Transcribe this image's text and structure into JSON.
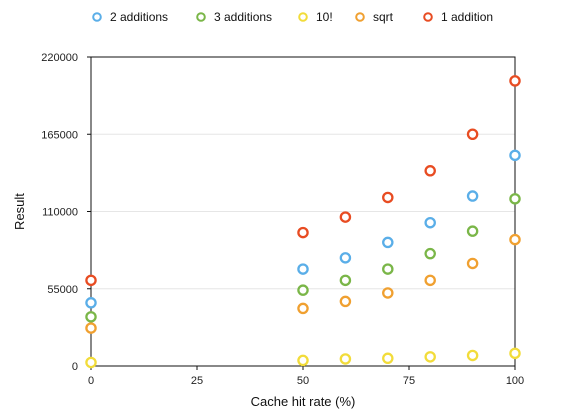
{
  "chart_data": {
    "type": "scatter",
    "title": "",
    "xlabel": "Cache hit rate (%)",
    "ylabel": "Result",
    "xlim": [
      0,
      100
    ],
    "ylim": [
      0,
      220000
    ],
    "x_ticks": [
      "0",
      "25",
      "50",
      "75",
      "100"
    ],
    "y_ticks": [
      "0",
      "55000",
      "110000",
      "165000",
      "220000"
    ],
    "grid": "horizontal",
    "legend": "top",
    "series": [
      {
        "name": "2 additions",
        "color": "#5aaee8",
        "points": [
          [
            0,
            45000
          ],
          [
            50,
            69000
          ],
          [
            60,
            77000
          ],
          [
            70,
            88000
          ],
          [
            80,
            102000
          ],
          [
            90,
            121000
          ],
          [
            100,
            150000
          ]
        ]
      },
      {
        "name": "3 additions",
        "color": "#7ab648",
        "points": [
          [
            0,
            35000
          ],
          [
            50,
            54000
          ],
          [
            60,
            61000
          ],
          [
            70,
            69000
          ],
          [
            80,
            80000
          ],
          [
            90,
            96000
          ],
          [
            100,
            119000
          ]
        ]
      },
      {
        "name": "10!",
        "color": "#f2dc3a",
        "points": [
          [
            0,
            2500
          ],
          [
            50,
            4000
          ],
          [
            60,
            5000
          ],
          [
            70,
            5500
          ],
          [
            80,
            6500
          ],
          [
            90,
            7500
          ],
          [
            100,
            9000
          ]
        ]
      },
      {
        "name": "sqrt",
        "color": "#f0a030",
        "points": [
          [
            0,
            27000
          ],
          [
            50,
            41000
          ],
          [
            60,
            46000
          ],
          [
            70,
            52000
          ],
          [
            80,
            61000
          ],
          [
            90,
            73000
          ],
          [
            100,
            90000
          ]
        ]
      },
      {
        "name": "1 addition",
        "color": "#e84c22",
        "points": [
          [
            0,
            61000
          ],
          [
            50,
            95000
          ],
          [
            60,
            106000
          ],
          [
            70,
            120000
          ],
          [
            80,
            139000
          ],
          [
            90,
            165000
          ],
          [
            100,
            203000
          ]
        ]
      }
    ]
  }
}
